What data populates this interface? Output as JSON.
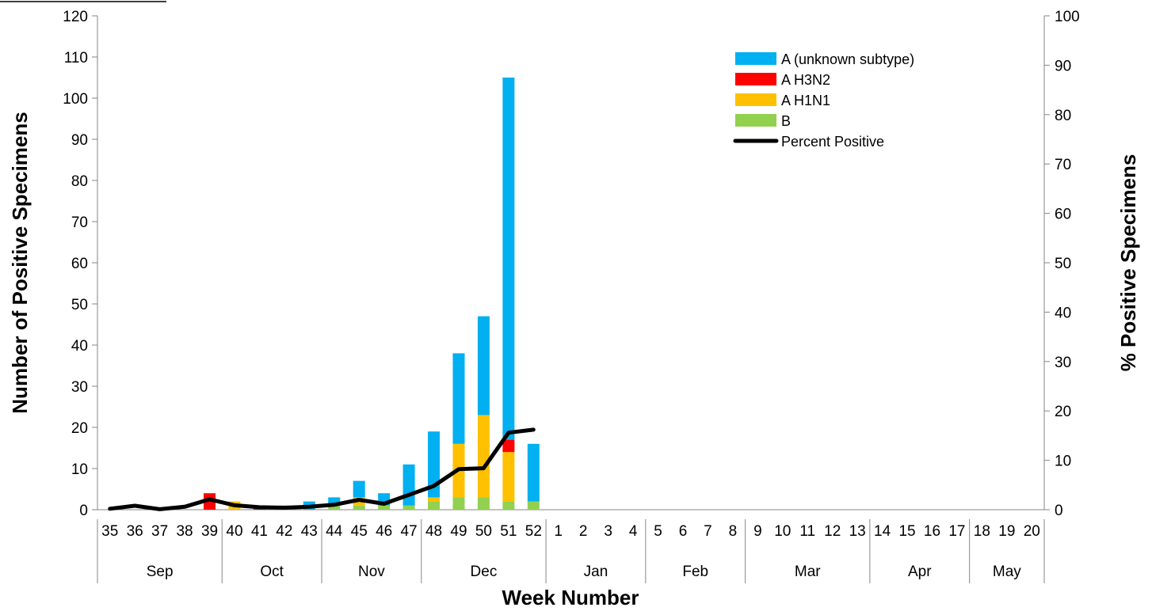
{
  "chart_data": {
    "type": "bar",
    "stacked": true,
    "categories": [
      "35",
      "36",
      "37",
      "38",
      "39",
      "40",
      "41",
      "42",
      "43",
      "44",
      "45",
      "46",
      "47",
      "48",
      "49",
      "50",
      "51",
      "52",
      "1",
      "2",
      "3",
      "4",
      "5",
      "6",
      "7",
      "8",
      "9",
      "10",
      "11",
      "12",
      "13",
      "14",
      "15",
      "16",
      "17",
      "18",
      "19",
      "20"
    ],
    "months": [
      {
        "label": "Sep",
        "start": 0,
        "end": 4
      },
      {
        "label": "Oct",
        "start": 5,
        "end": 8
      },
      {
        "label": "Nov",
        "start": 9,
        "end": 12
      },
      {
        "label": "Dec",
        "start": 13,
        "end": 17
      },
      {
        "label": "Jan",
        "start": 18,
        "end": 21
      },
      {
        "label": "Feb",
        "start": 22,
        "end": 25
      },
      {
        "label": "Mar",
        "start": 26,
        "end": 30
      },
      {
        "label": "Apr",
        "start": 31,
        "end": 34
      },
      {
        "label": "May",
        "start": 35,
        "end": 37
      }
    ],
    "series": [
      {
        "name": "B",
        "color": "#92d050",
        "values": [
          0,
          0,
          0,
          0,
          0,
          0,
          0,
          0,
          0,
          1,
          1,
          1,
          1,
          2,
          3,
          3,
          2,
          2,
          null,
          null,
          null,
          null,
          null,
          null,
          null,
          null,
          null,
          null,
          null,
          null,
          null,
          null,
          null,
          null,
          null,
          null,
          null,
          null
        ]
      },
      {
        "name": "A H1N1",
        "color": "#ffc000",
        "values": [
          0,
          0,
          0,
          0,
          0,
          2,
          0,
          0,
          0,
          0,
          2,
          0,
          0,
          1,
          13,
          20,
          12,
          0,
          null,
          null,
          null,
          null,
          null,
          null,
          null,
          null,
          null,
          null,
          null,
          null,
          null,
          null,
          null,
          null,
          null,
          null,
          null,
          null
        ]
      },
      {
        "name": "A H3N2",
        "color": "#ff0000",
        "values": [
          0,
          0,
          0,
          0,
          4,
          0,
          1,
          0,
          0,
          0,
          0,
          0,
          0,
          0,
          0,
          0,
          3,
          0,
          null,
          null,
          null,
          null,
          null,
          null,
          null,
          null,
          null,
          null,
          null,
          null,
          null,
          null,
          null,
          null,
          null,
          null,
          null,
          null
        ]
      },
      {
        "name": "A (unknown subtype)",
        "color": "#00b0f0",
        "values": [
          0,
          0,
          0,
          0,
          0,
          0,
          0,
          1,
          2,
          2,
          4,
          3,
          10,
          16,
          22,
          24,
          88,
          14,
          null,
          null,
          null,
          null,
          null,
          null,
          null,
          null,
          null,
          null,
          null,
          null,
          null,
          null,
          null,
          null,
          null,
          null,
          null,
          null
        ]
      }
    ],
    "line_series": {
      "name": "Percent Positive",
      "color": "#000000",
      "axis": "right",
      "values": [
        0.2,
        0.8,
        0.1,
        0.6,
        2.1,
        0.9,
        0.5,
        0.4,
        0.6,
        1.0,
        2.0,
        1.2,
        3.0,
        4.8,
        8.2,
        8.4,
        15.6,
        16.2,
        null,
        null,
        null,
        null,
        null,
        null,
        null,
        null,
        null,
        null,
        null,
        null,
        null,
        null,
        null,
        null,
        null,
        null,
        null,
        null
      ]
    },
    "legend": {
      "position": "top-right",
      "order": [
        "A (unknown subtype)",
        "A H3N2",
        "A H1N1",
        "B",
        "Percent Positive"
      ]
    },
    "xlabel": "Week Number",
    "ylabel": "Number of Positive Specimens",
    "y2label": "% Positive Specimens",
    "ylim": [
      0,
      120
    ],
    "y2lim": [
      0,
      100
    ],
    "yticks": [
      0,
      10,
      20,
      30,
      40,
      50,
      60,
      70,
      80,
      90,
      100,
      110,
      120
    ],
    "y2ticks": [
      0,
      10,
      20,
      30,
      40,
      50,
      60,
      70,
      80,
      90,
      100
    ],
    "grid": false
  }
}
